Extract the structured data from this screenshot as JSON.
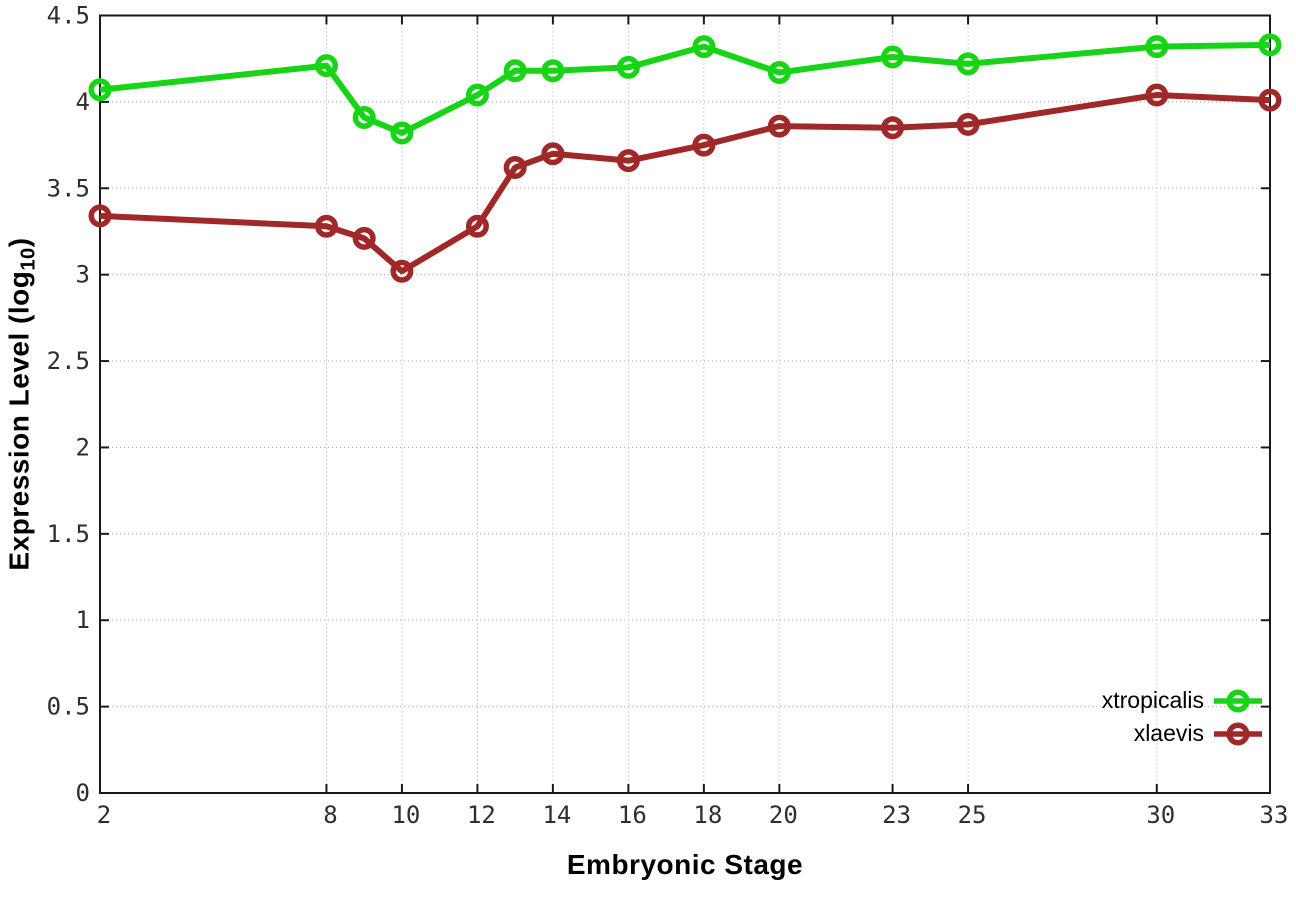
{
  "chart_data": {
    "type": "line",
    "title": "",
    "xlabel": "Embryonic Stage",
    "ylabel": {
      "text": "Expression Level (log",
      "sub": "10",
      "suffix": ")"
    },
    "xlim": [
      2,
      33
    ],
    "ylim": [
      0,
      4.5
    ],
    "grid": true,
    "grid_style": "dotted",
    "legend_position": "inside-bottom-right",
    "x_tick_values": [
      2,
      8,
      10,
      12,
      14,
      16,
      18,
      20,
      23,
      25,
      30,
      33
    ],
    "x_tick_labels": [
      "2",
      "8",
      "10",
      "12",
      "14",
      "16",
      "18",
      "20",
      "23",
      "25",
      "30",
      "33"
    ],
    "y_tick_values": [
      0,
      0.5,
      1,
      1.5,
      2,
      2.5,
      3,
      3.5,
      4,
      4.5
    ],
    "y_tick_labels": [
      "0",
      "0.5",
      "1",
      "1.5",
      "2",
      "2.5",
      "3",
      "3.5",
      "4",
      "4.5"
    ],
    "x": [
      2,
      8,
      9,
      10,
      12,
      13,
      14,
      16,
      18,
      20,
      23,
      25,
      30,
      33
    ],
    "series": [
      {
        "name": "xtropicalis",
        "color": "#17d417",
        "marker": "open-circle",
        "values": [
          4.07,
          4.21,
          3.91,
          3.82,
          4.04,
          4.18,
          4.18,
          4.2,
          4.32,
          4.17,
          4.26,
          4.22,
          4.32,
          4.33
        ]
      },
      {
        "name": "xlaevis",
        "color": "#a02828",
        "marker": "open-circle",
        "values": [
          3.34,
          3.28,
          3.21,
          3.02,
          3.28,
          3.62,
          3.7,
          3.66,
          3.75,
          3.86,
          3.85,
          3.87,
          4.04,
          4.01
        ]
      }
    ],
    "colors": {
      "axis": "#1a1a1a",
      "grid": "#ababab",
      "tick_label": "#2e2e2e"
    }
  }
}
